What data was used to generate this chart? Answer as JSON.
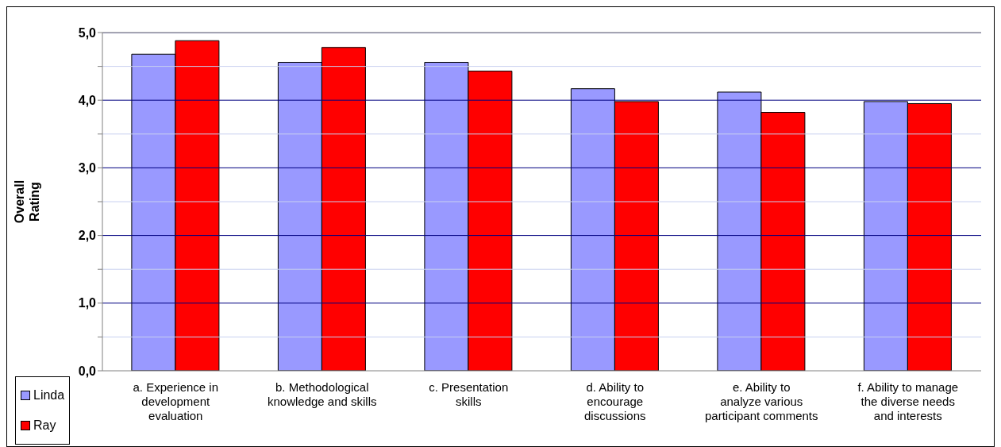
{
  "chart_data": {
    "type": "bar",
    "ylabel": "Overall Rating",
    "categories": [
      "a. Experience in development evaluation",
      "b. Methodological knowledge and skills",
      "c. Presentation skills",
      "d. Ability to encourage discussions",
      "e. Ability to analyze various participant comments",
      "f. Ability to manage the diverse needs and interests"
    ],
    "series": [
      {
        "name": "Linda",
        "color": "#9999ff",
        "values": [
          4.68,
          4.56,
          4.56,
          4.17,
          4.12,
          3.98
        ]
      },
      {
        "name": "Ray",
        "color": "#ff0000",
        "values": [
          4.88,
          4.78,
          4.43,
          3.98,
          3.82,
          3.95
        ]
      }
    ],
    "ylim": [
      0,
      5
    ],
    "yticks": [
      {
        "value": 0,
        "label": "0,0"
      },
      {
        "value": 0.5,
        "label": null
      },
      {
        "value": 1,
        "label": "1,0"
      },
      {
        "value": 1.5,
        "label": null
      },
      {
        "value": 2,
        "label": "2,0"
      },
      {
        "value": 2.5,
        "label": null
      },
      {
        "value": 3,
        "label": "3,0"
      },
      {
        "value": 3.5,
        "label": null
      },
      {
        "value": 4,
        "label": "4,0"
      },
      {
        "value": 4.5,
        "label": null
      },
      {
        "value": 5,
        "label": "5,0"
      }
    ],
    "grid": "y",
    "legend": "bottom left"
  }
}
